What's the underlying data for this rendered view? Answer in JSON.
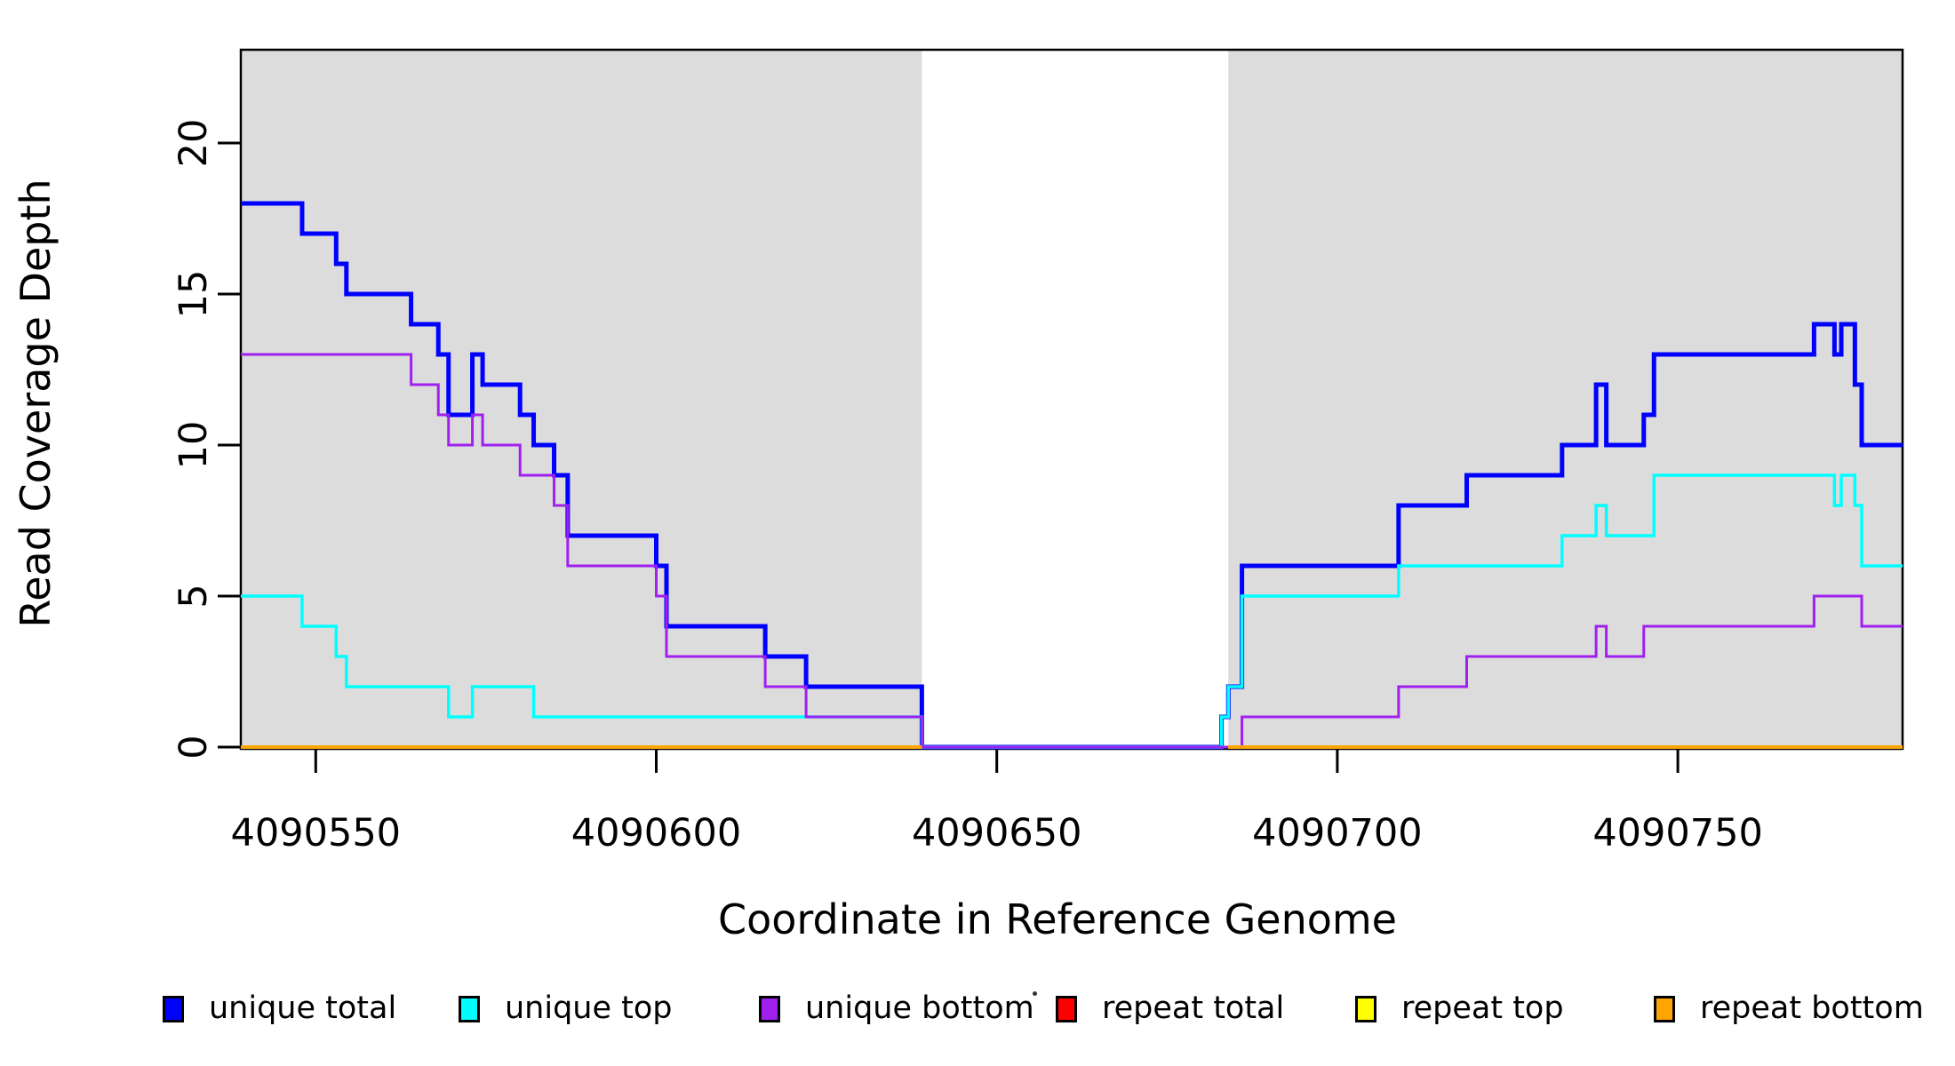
{
  "figure": {
    "background_color": "#FFFFFF",
    "panel_color": "#DCDCDC"
  },
  "legend": {
    "items": [
      {
        "label": "unique total",
        "color": "#0000FF",
        "swatch": "blue-square"
      },
      {
        "label": "unique top",
        "color": "#00FFFF",
        "swatch": "cyan-square"
      },
      {
        "label": "unique bottom",
        "color": "#A020F0",
        "swatch": "purple-square"
      },
      {
        "label": "repeat total",
        "color": "#FF0000",
        "swatch": "red-square"
      },
      {
        "label": "repeat top",
        "color": "#FFFF00",
        "swatch": "yellow-square"
      },
      {
        "label": "repeat bottom",
        "color": "#FFA500",
        "swatch": "orange-square"
      }
    ]
  },
  "chart_data": {
    "type": "line",
    "step": true,
    "title": "",
    "xlabel": "Coordinate in Reference Genome",
    "ylabel": "Read Coverage Depth",
    "xlim": [
      4090539,
      4090783
    ],
    "ylim": [
      0,
      23.1
    ],
    "x_ticks": [
      4090550,
      4090600,
      4090650,
      4090700,
      4090750
    ],
    "y_ticks": [
      0,
      5,
      10,
      15,
      20
    ],
    "grid": false,
    "legend_position": "bottom",
    "shaded_regions": [
      {
        "x0": 4090539,
        "x1": 4090639,
        "color": "#DCDCDC"
      },
      {
        "x0": 4090684,
        "x1": 4090783,
        "color": "#DCDCDC"
      }
    ],
    "coverage_gap": {
      "x0": 4090639,
      "x1": 4090684
    },
    "series": [
      {
        "name": "unique total",
        "color": "#0000FF",
        "line_width": 5,
        "parts": [
          [
            [
              4090539,
              18
            ],
            [
              4090548,
              17
            ],
            [
              4090553,
              16
            ],
            [
              4090554.5,
              15
            ],
            [
              4090564,
              14
            ],
            [
              4090568,
              13
            ],
            [
              4090569.5,
              11
            ],
            [
              4090573,
              13
            ],
            [
              4090574.5,
              12
            ],
            [
              4090580,
              11
            ],
            [
              4090582,
              10
            ],
            [
              4090585,
              9
            ],
            [
              4090587,
              7
            ],
            [
              4090600,
              6
            ],
            [
              4090601.5,
              4
            ],
            [
              4090616,
              3
            ],
            [
              4090622,
              2
            ],
            [
              4090639,
              0
            ],
            [
              4090683,
              1
            ],
            [
              4090684,
              2
            ],
            [
              4090686,
              6
            ],
            [
              4090709,
              8
            ],
            [
              4090719,
              9
            ],
            [
              4090733,
              10
            ],
            [
              4090738,
              12
            ],
            [
              4090739.5,
              10
            ],
            [
              4090745,
              11
            ],
            [
              4090746.5,
              13
            ],
            [
              4090770,
              14
            ],
            [
              4090773,
              13
            ],
            [
              4090774,
              14
            ],
            [
              4090776,
              12
            ],
            [
              4090777,
              10
            ],
            [
              4090783,
              10
            ]
          ]
        ]
      },
      {
        "name": "unique top",
        "color": "#00FFFF",
        "line_width": 3.5,
        "parts": [
          [
            [
              4090539,
              5
            ],
            [
              4090548,
              4
            ],
            [
              4090553,
              3
            ],
            [
              4090554.5,
              2
            ],
            [
              4090569.5,
              1
            ],
            [
              4090573,
              2
            ],
            [
              4090582,
              1
            ],
            [
              4090639,
              0
            ],
            [
              4090683,
              1
            ],
            [
              4090684,
              2
            ],
            [
              4090686,
              5
            ],
            [
              4090709,
              6
            ],
            [
              4090733,
              7
            ],
            [
              4090738,
              8
            ],
            [
              4090739.5,
              7
            ],
            [
              4090746.5,
              9
            ],
            [
              4090773,
              8
            ],
            [
              4090774,
              9
            ],
            [
              4090776,
              8
            ],
            [
              4090777,
              6
            ],
            [
              4090783,
              6
            ]
          ]
        ]
      },
      {
        "name": "unique bottom",
        "color": "#A020F0",
        "line_width": 3,
        "parts": [
          [
            [
              4090539,
              13
            ],
            [
              4090564,
              12
            ],
            [
              4090568,
              11
            ],
            [
              4090569.5,
              10
            ],
            [
              4090573,
              11
            ],
            [
              4090574.5,
              10
            ],
            [
              4090580,
              9
            ],
            [
              4090585,
              8
            ],
            [
              4090587,
              6
            ],
            [
              4090600,
              5
            ],
            [
              4090601.5,
              3
            ],
            [
              4090616,
              2
            ],
            [
              4090622,
              1
            ],
            [
              4090639,
              0
            ],
            [
              4090686,
              1
            ],
            [
              4090709,
              2
            ],
            [
              4090719,
              3
            ],
            [
              4090738,
              4
            ],
            [
              4090739.5,
              3
            ],
            [
              4090745,
              4
            ],
            [
              4090770,
              5
            ],
            [
              4090777,
              4
            ],
            [
              4090783,
              4
            ]
          ]
        ]
      },
      {
        "name": "repeat total",
        "color": "#FF0000",
        "line_width": 4,
        "parts": [
          [
            [
              4090539,
              0
            ],
            [
              4090639,
              0
            ]
          ],
          [
            [
              4090684,
              0
            ],
            [
              4090783,
              0
            ]
          ]
        ]
      },
      {
        "name": "repeat top",
        "color": "#FFFF00",
        "line_width": 4,
        "parts": [
          [
            [
              4090539,
              0
            ],
            [
              4090639,
              0
            ]
          ],
          [
            [
              4090684,
              0
            ],
            [
              4090783,
              0
            ]
          ]
        ]
      },
      {
        "name": "repeat bottom",
        "color": "#FFA500",
        "line_width": 4,
        "parts": [
          [
            [
              4090539,
              0
            ],
            [
              4090639,
              0
            ]
          ],
          [
            [
              4090684,
              0
            ],
            [
              4090783,
              0
            ]
          ]
        ]
      }
    ]
  }
}
